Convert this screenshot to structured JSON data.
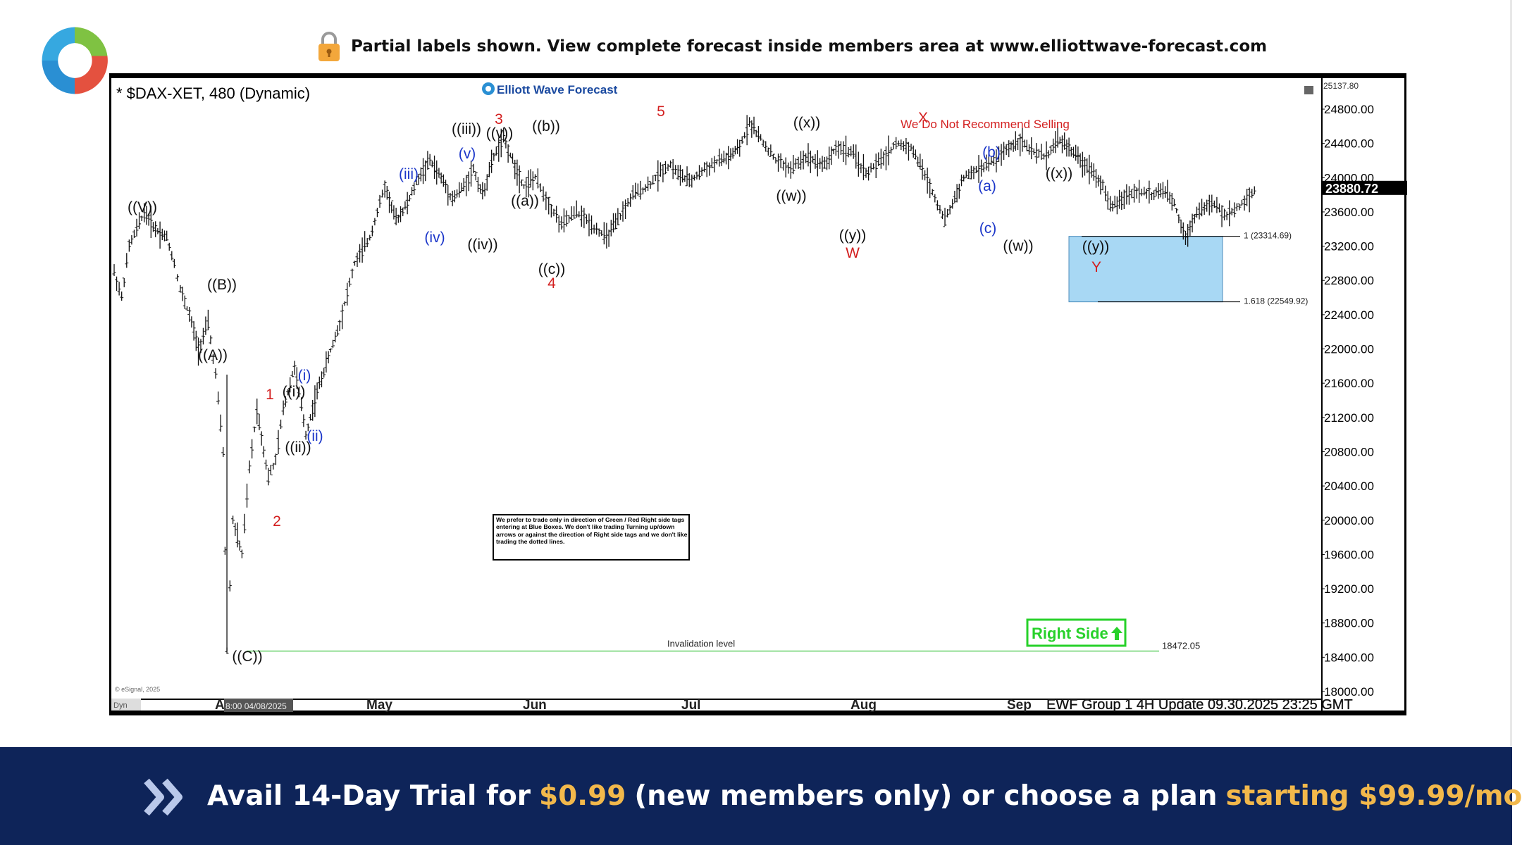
{
  "banner_top": {
    "text": "Partial labels shown. View complete forecast inside members area at www.elliottwave-forecast.com",
    "lock_icon": "lock-icon",
    "logo_icon": "ewf-swirl-logo"
  },
  "chart_data": {
    "type": "candlestick",
    "title": "* $DAX-XET, 480 (Dynamic)",
    "brand_label": "Elliott Wave Forecast",
    "copyright": "© eSignal, 2025",
    "footer_info": "EWF Group 1 4H  Update 09.30.2025 23:25 GMT",
    "cursor_date": "8:00 04/08/2025",
    "left_corner": "Dyn",
    "ylim": [
      18000,
      25137.8
    ],
    "y_ticks": [
      24800,
      24400,
      24000,
      23600,
      23200,
      22800,
      22400,
      22000,
      21600,
      21200,
      20800,
      20400,
      20000,
      19600,
      19200,
      18800,
      18400,
      18000
    ],
    "y_tick_labels": [
      "24800.00",
      "24400.00",
      "24000.00",
      "23600.00",
      "23200.00",
      "22800.00",
      "22400.00",
      "22000.00",
      "21600.00",
      "21200.00",
      "20800.00",
      "20400.00",
      "20000.00",
      "19600.00",
      "19200.00",
      "18800.00",
      "18400.00",
      "18000.00"
    ],
    "top_value_label": "25137.80",
    "last_price": 23880.72,
    "last_price_label": "23880.72",
    "x_months": [
      "Apr",
      "May",
      "Jun",
      "Jul",
      "Aug",
      "Sep"
    ],
    "price_path": [
      [
        0,
        22900
      ],
      [
        10,
        22600
      ],
      [
        20,
        23200
      ],
      [
        40,
        23600
      ],
      [
        55,
        23400
      ],
      [
        70,
        23300
      ],
      [
        80,
        23000
      ],
      [
        88,
        22700
      ],
      [
        100,
        22400
      ],
      [
        112,
        22000
      ],
      [
        125,
        22300
      ],
      [
        135,
        21700
      ],
      [
        145,
        20800
      ],
      [
        150,
        18472
      ],
      [
        158,
        20000
      ],
      [
        170,
        19600
      ],
      [
        180,
        20600
      ],
      [
        190,
        21300
      ],
      [
        205,
        20500
      ],
      [
        215,
        20700
      ],
      [
        225,
        21300
      ],
      [
        240,
        21800
      ],
      [
        255,
        21000
      ],
      [
        270,
        21500
      ],
      [
        285,
        21900
      ],
      [
        300,
        22300
      ],
      [
        320,
        23000
      ],
      [
        340,
        23300
      ],
      [
        360,
        23900
      ],
      [
        375,
        23500
      ],
      [
        390,
        23700
      ],
      [
        405,
        24000
      ],
      [
        420,
        24200
      ],
      [
        435,
        24000
      ],
      [
        450,
        23750
      ],
      [
        465,
        23900
      ],
      [
        478,
        24100
      ],
      [
        490,
        23800
      ],
      [
        505,
        24250
      ],
      [
        518,
        24450
      ],
      [
        530,
        24200
      ],
      [
        545,
        23900
      ],
      [
        560,
        24000
      ],
      [
        578,
        23700
      ],
      [
        595,
        23450
      ],
      [
        615,
        23600
      ],
      [
        635,
        23450
      ],
      [
        655,
        23300
      ],
      [
        670,
        23500
      ],
      [
        690,
        23800
      ],
      [
        710,
        23900
      ],
      [
        730,
        24100
      ],
      [
        740,
        24150
      ],
      [
        750,
        24050
      ],
      [
        765,
        23950
      ],
      [
        785,
        24100
      ],
      [
        805,
        24200
      ],
      [
        820,
        24250
      ],
      [
        832,
        24350
      ],
      [
        845,
        24650
      ],
      [
        860,
        24450
      ],
      [
        880,
        24200
      ],
      [
        900,
        24100
      ],
      [
        920,
        24250
      ],
      [
        945,
        24150
      ],
      [
        960,
        24350
      ],
      [
        980,
        24300
      ],
      [
        1000,
        24050
      ],
      [
        1020,
        24200
      ],
      [
        1040,
        24400
      ],
      [
        1060,
        24350
      ],
      [
        1075,
        24100
      ],
      [
        1085,
        23900
      ],
      [
        1095,
        23700
      ],
      [
        1105,
        23500
      ],
      [
        1115,
        23700
      ],
      [
        1130,
        24000
      ],
      [
        1150,
        24100
      ],
      [
        1170,
        24200
      ],
      [
        1190,
        24350
      ],
      [
        1205,
        24450
      ],
      [
        1220,
        24300
      ],
      [
        1240,
        24250
      ],
      [
        1255,
        24450
      ],
      [
        1270,
        24350
      ],
      [
        1285,
        24200
      ],
      [
        1300,
        24100
      ],
      [
        1315,
        23900
      ],
      [
        1325,
        23650
      ],
      [
        1340,
        23750
      ],
      [
        1360,
        23850
      ],
      [
        1380,
        23800
      ],
      [
        1395,
        23850
      ],
      [
        1410,
        23700
      ],
      [
        1425,
        23300
      ],
      [
        1440,
        23600
      ],
      [
        1460,
        23700
      ],
      [
        1480,
        23550
      ],
      [
        1500,
        23700
      ],
      [
        1520,
        23880
      ]
    ],
    "wave_labels": [
      {
        "text": "((V))",
        "color": "black"
      },
      {
        "text": "((B))",
        "color": "black"
      },
      {
        "text": "((A))",
        "color": "black"
      },
      {
        "text": "((C))",
        "color": "black"
      },
      {
        "text": "1",
        "color": "red"
      },
      {
        "text": "2",
        "color": "red"
      },
      {
        "text": "((i))",
        "color": "black"
      },
      {
        "text": "(i)",
        "color": "blue"
      },
      {
        "text": "((ii))",
        "color": "black"
      },
      {
        "text": "(ii)",
        "color": "blue"
      },
      {
        "text": "(iii)",
        "color": "blue"
      },
      {
        "text": "(iv)",
        "color": "blue"
      },
      {
        "text": "((iii))",
        "color": "black"
      },
      {
        "text": "(v)",
        "color": "blue"
      },
      {
        "text": "((iv))",
        "color": "black"
      },
      {
        "text": "3",
        "color": "red"
      },
      {
        "text": "((v))",
        "color": "black"
      },
      {
        "text": "((b))",
        "color": "black"
      },
      {
        "text": "((a))",
        "color": "black"
      },
      {
        "text": "((c))",
        "color": "black"
      },
      {
        "text": "4",
        "color": "red"
      },
      {
        "text": "5",
        "color": "red"
      },
      {
        "text": "((x))",
        "color": "black"
      },
      {
        "text": "((w))",
        "color": "black"
      },
      {
        "text": "((y))",
        "color": "black"
      },
      {
        "text": "W",
        "color": "red"
      },
      {
        "text": "X",
        "color": "red"
      },
      {
        "text": "(b)",
        "color": "blue"
      },
      {
        "text": "(a)",
        "color": "blue"
      },
      {
        "text": "(c)",
        "color": "blue"
      },
      {
        "text": "((w))",
        "color": "black"
      },
      {
        "text": "((x))",
        "color": "black"
      },
      {
        "text": "((y))",
        "color": "black"
      },
      {
        "text": "Y",
        "color": "red"
      }
    ],
    "annotation_selling": "We Do Not Recommend Selling",
    "blue_box": {
      "top": 23314.69,
      "bottom": 22549.92,
      "color": "#a8d8f4"
    },
    "fib_1": "1 (23314.69)",
    "fib_1618": "1.618 (22549.92)",
    "invalidation_value": 18472.05,
    "invalidation_label": "Invalidation level",
    "invalidation_value_label": "18472.05",
    "right_side_label": "Right Side",
    "note_text": "We prefer to trade only in direction of Green / Red Right side tags entering at Blue Boxes. We don't like trading Turning up/down arrows or against the direction of Right side tags and we don't like trading the dotted lines.",
    "colors": {
      "red": "#d31f1f",
      "blue": "#1a35c9",
      "green": "#27d12a",
      "box": "#a8d8f4",
      "invalidation": "#67d06a"
    }
  },
  "footer": {
    "part1": "Avail 14-Day Trial for ",
    "price": "$0.99",
    "part2": " (new members only) or choose a plan ",
    "plan": "starting $99.99/mo",
    "icon": "double-chevron-right-icon"
  }
}
